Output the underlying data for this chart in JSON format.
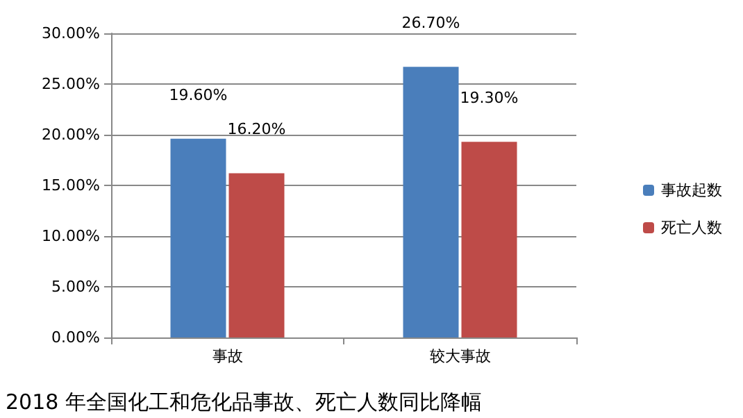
{
  "chart_data": {
    "type": "bar",
    "categories": [
      "事故",
      "较大事故"
    ],
    "series": [
      {
        "name": "事故起数",
        "color": "#4a7ebb",
        "values": [
          19.6,
          26.7
        ],
        "value_labels": [
          "19.60%",
          "26.70%"
        ]
      },
      {
        "name": "死亡人数",
        "color": "#be4b48",
        "values": [
          16.2,
          19.3
        ],
        "value_labels": [
          "16.20%",
          "19.30%"
        ]
      }
    ],
    "ylim": [
      0,
      30
    ],
    "yticks": [
      {
        "value": 0,
        "label": "0.00%"
      },
      {
        "value": 5,
        "label": "5.00%"
      },
      {
        "value": 10,
        "label": "10.00%"
      },
      {
        "value": 15,
        "label": "15.00%"
      },
      {
        "value": 20,
        "label": "20.00%"
      },
      {
        "value": 25,
        "label": "25.00%"
      },
      {
        "value": 30,
        "label": "30.00%"
      }
    ],
    "grid": "y",
    "legend": "right",
    "annotations": [
      "2018 年全国化工和危化品事故、死亡人数同比降幅"
    ]
  }
}
